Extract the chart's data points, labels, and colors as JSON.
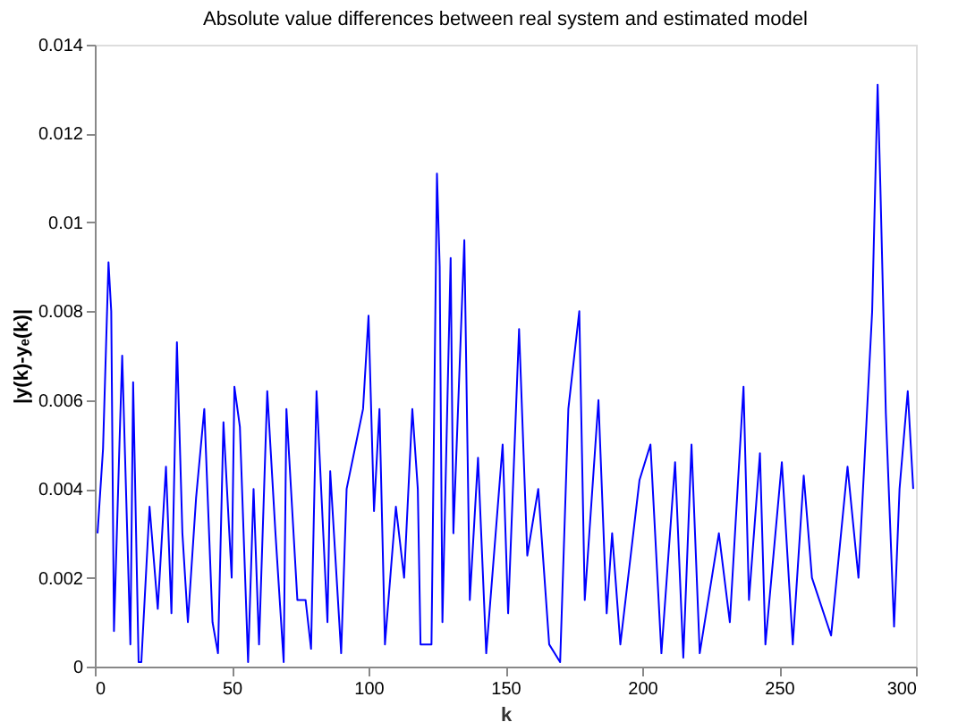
{
  "chart_data": {
    "type": "line",
    "title": "Absolute value differences between real system and estimated model",
    "xlabel": "k",
    "ylabel": "|y(k)-yₑ(k)|",
    "x": [
      1,
      3,
      5,
      6,
      7,
      9,
      10,
      13,
      14,
      16,
      17,
      20,
      23,
      26,
      28,
      30,
      32,
      34,
      37,
      40,
      43,
      45,
      47,
      50,
      51,
      53,
      56,
      58,
      60,
      63,
      66,
      69,
      70,
      74,
      77,
      79,
      81,
      85,
      86,
      90,
      92,
      98,
      100,
      102,
      104,
      106,
      110,
      113,
      116,
      118,
      119,
      123,
      125,
      126,
      127,
      130,
      131,
      135,
      137,
      140,
      143,
      149,
      151,
      155,
      158,
      162,
      166,
      170,
      173,
      177,
      179,
      184,
      187,
      189,
      192,
      199,
      203,
      207,
      212,
      215,
      218,
      221,
      228,
      232,
      237,
      239,
      243,
      245,
      251,
      255,
      259,
      262,
      269,
      275,
      279,
      284,
      286,
      287,
      289,
      292,
      294,
      297,
      299
    ],
    "series": [
      {
        "color": "#0000ff",
        "values": [
          0.003,
          0.0049,
          0.0091,
          0.008,
          0.0008,
          0.005,
          0.007,
          0.0005,
          0.0064,
          0.0001,
          0.0001,
          0.0036,
          0.0013,
          0.0045,
          0.0012,
          0.0073,
          0.003,
          0.001,
          0.0038,
          0.0058,
          0.001,
          0.0003,
          0.0055,
          0.002,
          0.0063,
          0.0054,
          0.0001,
          0.004,
          0.0005,
          0.0062,
          0.003,
          0.0001,
          0.0058,
          0.0015,
          0.0015,
          0.0004,
          0.0062,
          0.001,
          0.0044,
          0.0003,
          0.004,
          0.0058,
          0.0079,
          0.0035,
          0.0058,
          0.0005,
          0.0036,
          0.002,
          0.0058,
          0.004,
          0.0005,
          0.0005,
          0.0111,
          0.009,
          0.001,
          0.0092,
          0.003,
          0.0096,
          0.0015,
          0.0047,
          0.0003,
          0.005,
          0.0012,
          0.0076,
          0.0025,
          0.004,
          0.0005,
          0.0001,
          0.0058,
          0.008,
          0.0015,
          0.006,
          0.0012,
          0.003,
          0.0005,
          0.0042,
          0.005,
          0.0003,
          0.0046,
          0.0002,
          0.005,
          0.0003,
          0.003,
          0.001,
          0.0063,
          0.0015,
          0.0048,
          0.0005,
          0.0046,
          0.0005,
          0.0043,
          0.002,
          0.0007,
          0.0045,
          0.002,
          0.008,
          0.0131,
          0.0108,
          0.0057,
          0.0009,
          0.004,
          0.0062,
          0.004
        ]
      }
    ],
    "xlim": [
      0,
      300
    ],
    "xticks": [
      0,
      50,
      100,
      150,
      200,
      250,
      300
    ],
    "ylim": [
      0,
      0.014
    ],
    "yticks": [
      0,
      0.002,
      0.004,
      0.006,
      0.008,
      0.01,
      0.012,
      0.014
    ],
    "grid": false,
    "legend": false
  }
}
